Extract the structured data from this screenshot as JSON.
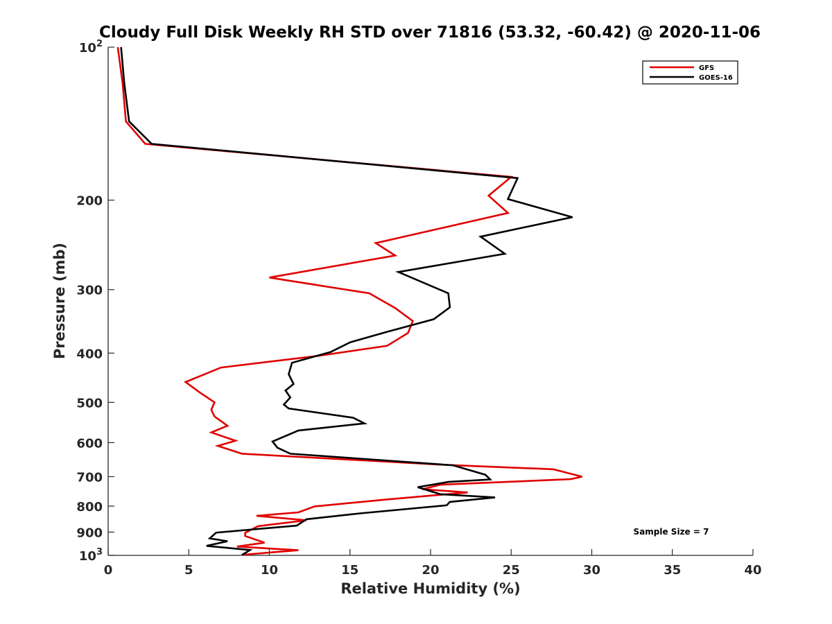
{
  "chart_data": {
    "type": "line",
    "title": "Cloudy Full Disk Weekly RH STD over 71816 (53.32, -60.42) @ 2020-11-06",
    "xlabel": "Relative Humidity (%)",
    "ylabel": "Pressure (mb)",
    "xlim": [
      0,
      40
    ],
    "ylim": [
      100,
      1000
    ],
    "y_scale": "log",
    "y_reversed": true,
    "grid": false,
    "legend_position": "top-right",
    "x_ticks": [
      0,
      5,
      10,
      15,
      20,
      25,
      30,
      35,
      40
    ],
    "x_tick_labels": [
      "0",
      "5",
      "10",
      "15",
      "20",
      "25",
      "30",
      "35",
      "40"
    ],
    "y_ticks": [
      100,
      200,
      300,
      400,
      500,
      600,
      700,
      800,
      900,
      1000
    ],
    "y_tick_labels": [
      {
        "base": "10",
        "exp": "2"
      },
      {
        "text": "200"
      },
      {
        "text": "300"
      },
      {
        "text": "400"
      },
      {
        "text": "500"
      },
      {
        "text": "600"
      },
      {
        "text": "700"
      },
      {
        "text": "800"
      },
      {
        "text": "900"
      },
      {
        "base": "10",
        "exp": "3"
      }
    ],
    "annotation": "Sample Size = 7",
    "series": [
      {
        "name": "GFS",
        "color": "#e00000",
        "x": [
          0.6,
          0.9,
          1.1,
          2.3,
          25.0,
          23.6,
          24.8,
          16.6,
          17.8,
          10.0,
          16.2,
          17.8,
          18.9,
          18.6,
          17.3,
          13.0,
          7.0,
          4.8,
          5.6,
          6.6,
          6.4,
          6.6,
          7.4,
          6.4,
          7.9,
          6.8,
          8.3,
          21.0,
          27.6,
          29.4,
          28.7,
          20.6,
          19.5,
          22.3,
          17.5,
          12.8,
          11.8,
          9.2,
          12.3,
          9.3,
          8.5,
          8.5,
          9.7,
          8.0,
          11.8,
          8.4
        ],
        "y": [
          100,
          118,
          140,
          155,
          180,
          196,
          212,
          243,
          257,
          284,
          305,
          326,
          346,
          365,
          387,
          405,
          427,
          456,
          476,
          500,
          517,
          533,
          556,
          573,
          595,
          609,
          631,
          664,
          677,
          700,
          708,
          726,
          741,
          752,
          775,
          801,
          823,
          836,
          853,
          876,
          903,
          916,
          944,
          961,
          977,
          997
        ]
      },
      {
        "name": "GOES-16",
        "color": "#000000",
        "x": [
          0.8,
          1.0,
          1.3,
          2.7,
          25.4,
          24.8,
          28.8,
          23.1,
          24.6,
          18.0,
          21.1,
          21.2,
          20.2,
          17.2,
          15.0,
          13.8,
          11.4,
          11.2,
          11.5,
          11.0,
          11.3,
          10.9,
          11.2,
          15.2,
          15.9,
          11.8,
          10.2,
          10.5,
          11.3,
          21.4,
          23.4,
          23.7,
          21.1,
          19.2,
          20.6,
          24.0,
          21.2,
          21.0,
          15.6,
          12.3,
          11.7,
          6.7,
          6.3,
          7.4,
          6.1,
          8.8,
          8.3
        ],
        "y": [
          100,
          118,
          140,
          155,
          181,
          199,
          216,
          236,
          255,
          277,
          305,
          325,
          343,
          364,
          381,
          398,
          418,
          440,
          460,
          474,
          489,
          505,
          514,
          536,
          550,
          568,
          597,
          614,
          631,
          665,
          694,
          709,
          717,
          734,
          758,
          769,
          785,
          797,
          827,
          849,
          874,
          902,
          926,
          938,
          958,
          976,
          998
        ]
      }
    ]
  }
}
